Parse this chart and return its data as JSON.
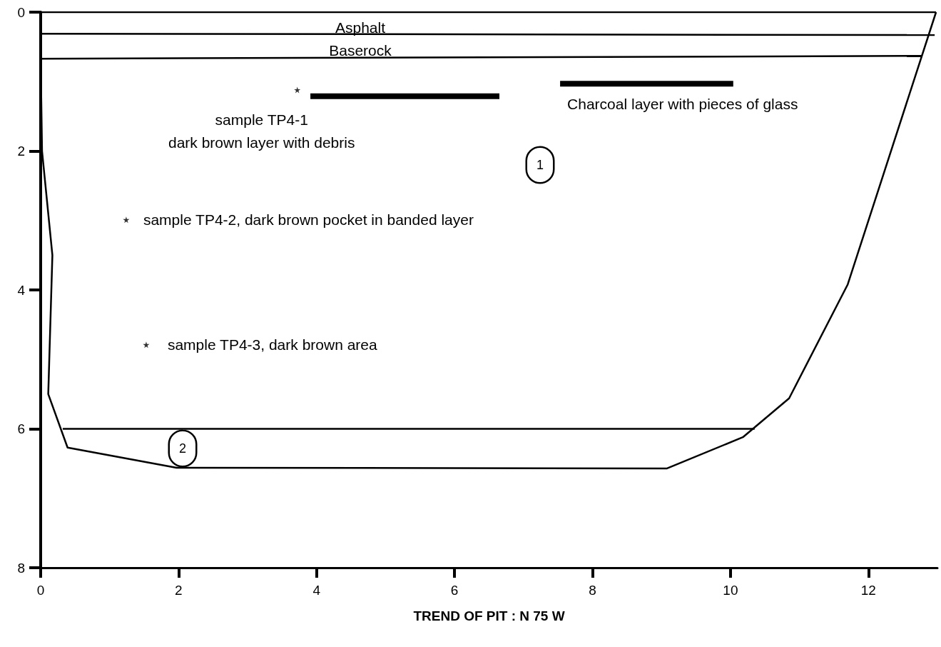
{
  "chart_data": {
    "type": "line",
    "xlabel": "TREND OF PIT : N 75 W",
    "xlim": [
      0,
      13
    ],
    "xticks": [
      0,
      2,
      4,
      6,
      8,
      10,
      12
    ],
    "ylim": [
      8,
      0
    ],
    "yticks": [
      0,
      2,
      4,
      6,
      8
    ],
    "marker": "none",
    "series": [
      {
        "color": "#000000",
        "x": [
          0,
          0.02,
          0.17,
          0.11,
          0.39,
          1.97,
          9.08,
          10.18,
          10.85,
          11.7,
          12.98
        ],
        "values": [
          0.7,
          2.0,
          3.5,
          5.5,
          6.27,
          6.56,
          6.57,
          6.12,
          5.56,
          3.92,
          0
        ]
      },
      {
        "color": "#000000",
        "x": [
          0,
          12.98
        ],
        "values": [
          0,
          0
        ]
      },
      {
        "color": "#000000",
        "x": [
          0,
          12.96
        ],
        "values": [
          0.31,
          0.33
        ]
      },
      {
        "color": "#000000",
        "x": [
          0,
          12.78
        ],
        "values": [
          0.67,
          0.63
        ]
      },
      {
        "color": "#000000",
        "x": [
          0.32,
          10.35
        ],
        "values": [
          6.0,
          6.0
        ]
      },
      {
        "color": "#000000",
        "x": [
          3.91,
          6.65
        ],
        "values": [
          1.21,
          1.21
        ]
      },
      {
        "color": "#000000",
        "x": [
          7.53,
          10.04
        ],
        "values": [
          1.03,
          1.03
        ]
      },
      {
        "type": "scatter",
        "marker": "star",
        "color": "#000000",
        "x": [
          3.72,
          1.24,
          1.53
        ],
        "values": [
          1.12,
          2.99,
          4.79
        ]
      }
    ],
    "annotations": [
      "Asphalt",
      "Baserock",
      {
        "text": "Charcoal layer with pieces of glass",
        "x": 7.53,
        "y": 1.03
      },
      {
        "text": "sample TP4-1\ndark brown layer with debris",
        "x": 3.72,
        "y": 1.12
      },
      {
        "text": "sample TP4-2, dark brown pocket in banded layer",
        "x": 1.24,
        "y": 2.99
      },
      {
        "text": "sample TP4-3, dark brown area",
        "x": 1.53,
        "y": 4.79
      },
      "1",
      "2"
    ]
  }
}
